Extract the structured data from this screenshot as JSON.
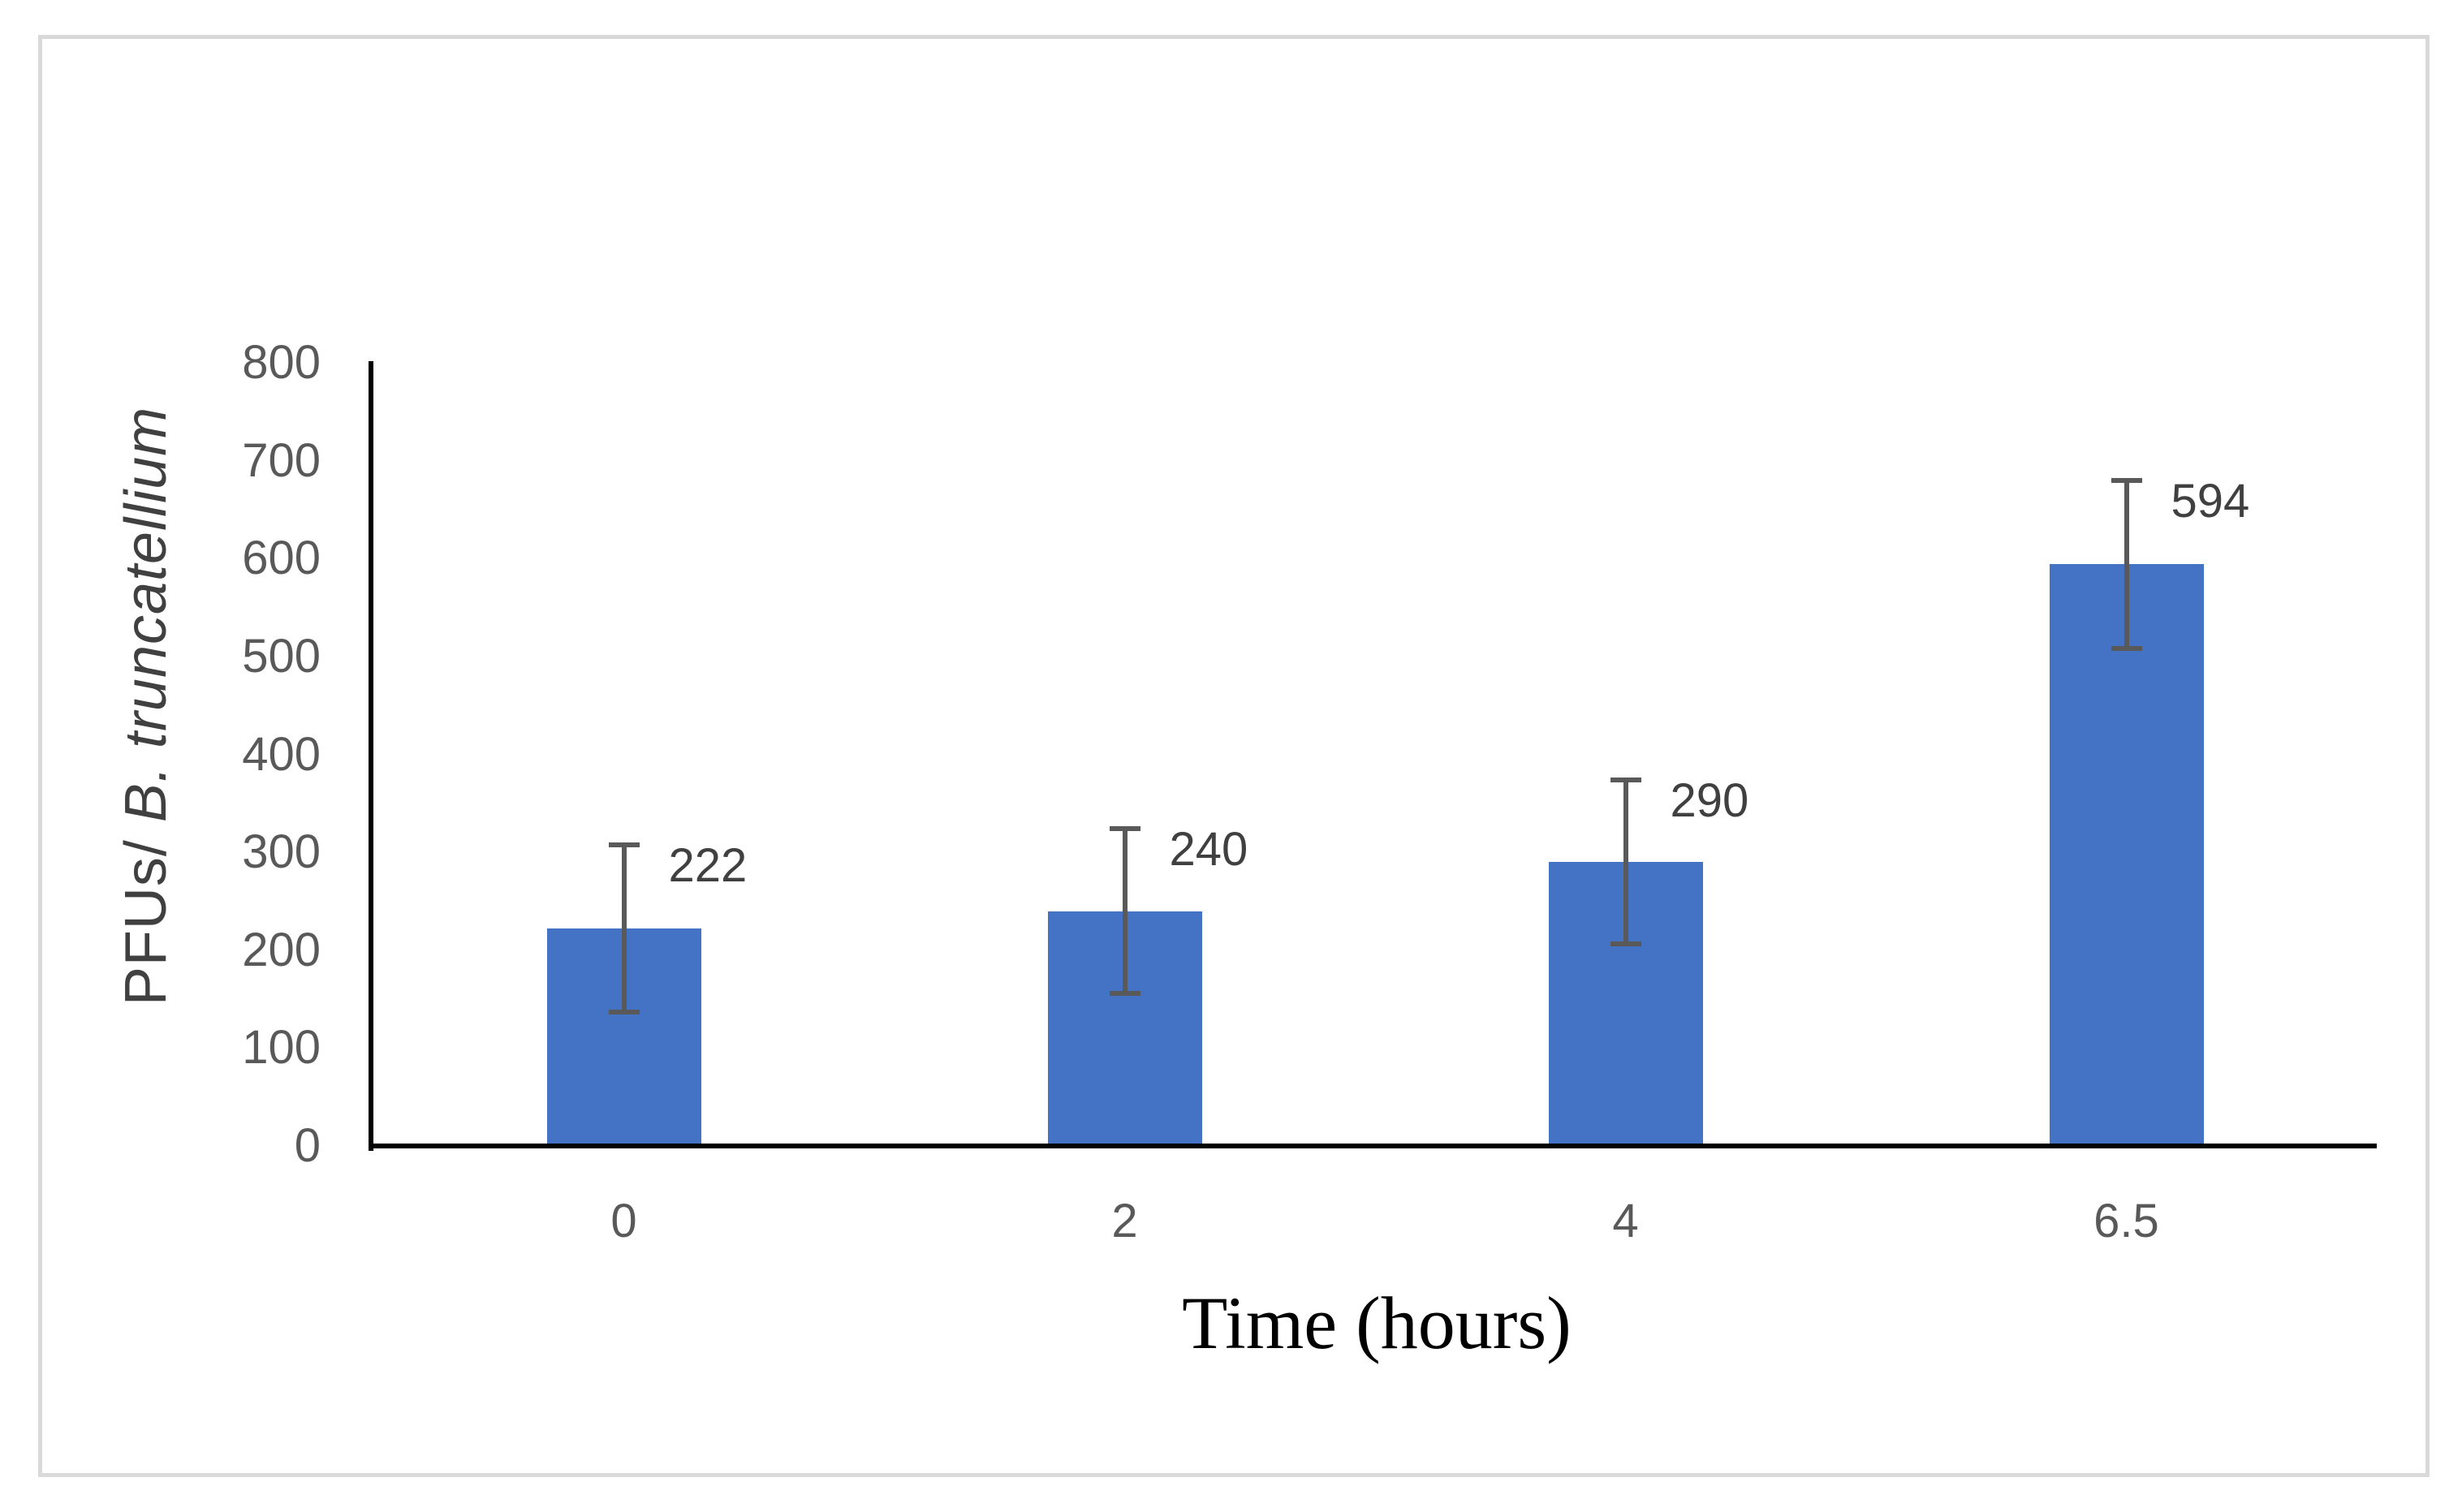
{
  "chart_data": {
    "type": "bar",
    "title": "",
    "categories": [
      "0",
      "2",
      "4",
      "6.5"
    ],
    "values": [
      222,
      240,
      290,
      594
    ],
    "data_labels": [
      "222",
      "240",
      "290",
      "594"
    ],
    "error_bars_plus": [
      88,
      87,
      86,
      88
    ],
    "error_bars_minus": [
      88,
      87,
      86,
      88
    ],
    "xlabel": "Time (hours)",
    "ylabel_prefix": "PFUs/ ",
    "ylabel_species": "B. truncatellium",
    "yticks": [
      "0",
      "100",
      "200",
      "300",
      "400",
      "500",
      "600",
      "700",
      "800"
    ],
    "ylim": [
      0,
      800
    ],
    "grid": false,
    "legend_position": "none",
    "colors": {
      "bar_fill": "#4472C4",
      "error_bar": "#595959",
      "axis_line": "#000000",
      "tick_label": "#595959",
      "data_label": "#404040",
      "axis_title": "#404040",
      "x_title": "#000000",
      "frame_border": "#D9D9D9",
      "background": "#FFFFFF"
    }
  }
}
